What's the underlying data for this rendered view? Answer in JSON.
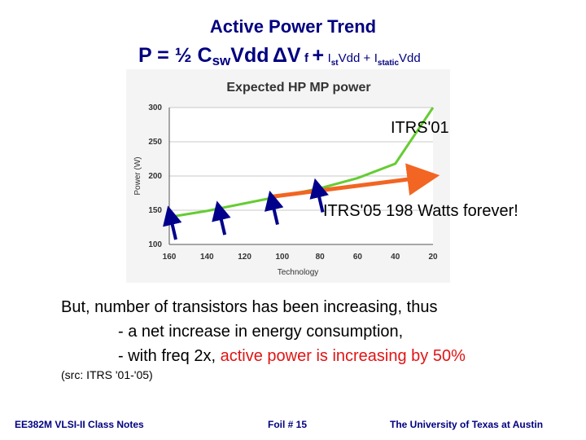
{
  "slide": {
    "title": "Active Power Trend",
    "formula": {
      "p": "P = ½ C",
      "sw": "sw",
      "vdd": "Vdd",
      "dv": "ΔV",
      "f": "f",
      "plus1": "+",
      "ist": "I",
      "ist_sub": "st",
      "ist_rest": "Vdd +",
      "istatic": "I",
      "istatic_sub": "static",
      "istatic_rest": "Vdd"
    },
    "body_lines": {
      "line1": "But, number of transistors has been increasing, thus",
      "line2": "- a net increase in energy consumption,",
      "line3_prefix": "- with freq 2x, ",
      "line3_highlight": "active power is increasing by 50%"
    },
    "source": "(src: ITRS '01-'05)",
    "footer": {
      "left": "EE382M VLSI-II Class Notes",
      "center": "Foil # 15",
      "right": "The University of Texas at Austin"
    }
  },
  "colors": {
    "title": "#000080",
    "itrs01_line": "#66cc33",
    "itrs05_arrow": "#f26522",
    "blue_arrows": "#00008b",
    "highlight_red": "#e01414"
  },
  "chart_data": {
    "type": "line",
    "title": "Expected HP MP power",
    "xlabel": "Technology",
    "ylabel": "Power (W)",
    "x_ticks": [
      160,
      140,
      120,
      100,
      80,
      60,
      40,
      20
    ],
    "y_ticks": [
      100,
      150,
      200,
      250,
      300
    ],
    "xlim": [
      160,
      20
    ],
    "ylim": [
      100,
      300
    ],
    "series": [
      {
        "name": "ITRS'01",
        "x": [
          160,
          140,
          120,
          100,
          80,
          60,
          40,
          20
        ],
        "y": [
          140,
          149,
          160,
          171,
          182,
          197,
          218,
          300
        ]
      },
      {
        "name": "ITRS'05 198 Watts forever!",
        "x": [
          105,
          25
        ],
        "y": [
          170,
          198
        ]
      }
    ],
    "annotations": [
      {
        "text": "ITRS'01"
      },
      {
        "text": "ITRS'05 198 Watts forever!"
      }
    ],
    "arrow_marks": [
      {
        "x": 160,
        "y": 150
      },
      {
        "x": 134,
        "y": 157
      },
      {
        "x": 106,
        "y": 172
      },
      {
        "x": 82,
        "y": 190
      }
    ]
  }
}
